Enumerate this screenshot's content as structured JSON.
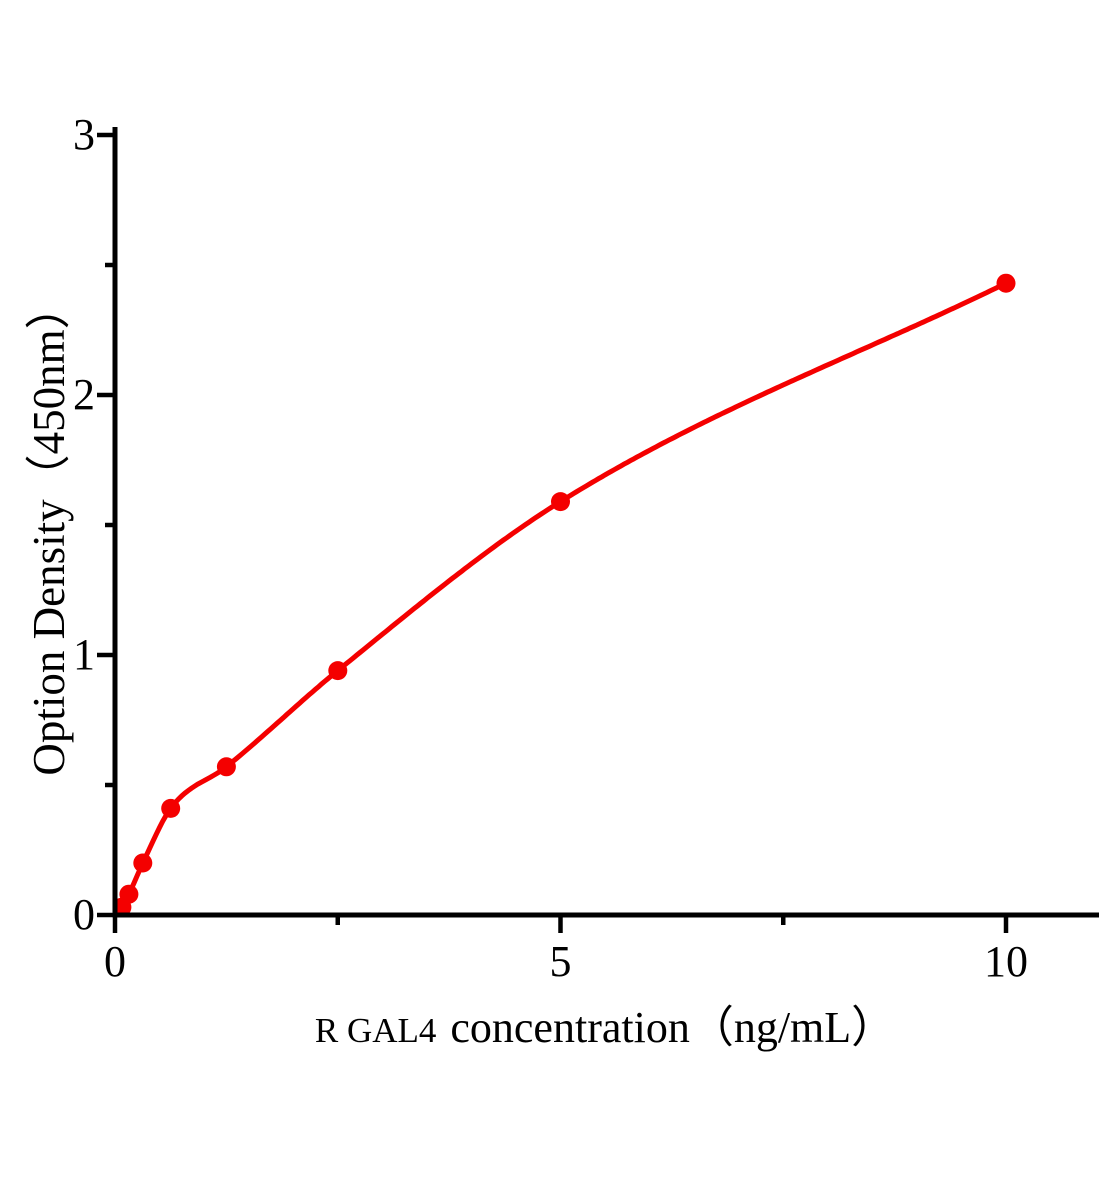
{
  "chart_data": {
    "type": "scatter",
    "title": "",
    "xlabel": "R GAL4 concentration（ng/mL）",
    "xlabel_prefix": "R GAL4",
    "xlabel_rest": "concentration（ng/mL）",
    "ylabel": "Option Density（450nm）",
    "series_name": "standard-curve",
    "x": [
      0.078,
      0.156,
      0.3125,
      0.625,
      1.25,
      2.5,
      5,
      10
    ],
    "y": [
      0.03,
      0.08,
      0.2,
      0.41,
      0.57,
      0.94,
      1.59,
      2.43
    ],
    "curve": {
      "start": [
        0,
        0
      ],
      "fit": "smooth-through-points"
    },
    "xlim": [
      0,
      11
    ],
    "ylim": [
      0,
      3
    ],
    "x_major_ticks": [
      {
        "v": 0,
        "label": "0"
      },
      {
        "v": 5,
        "label": "5"
      },
      {
        "v": 10,
        "label": "10"
      }
    ],
    "x_minor_ticks": [
      2.5,
      7.5
    ],
    "y_major_ticks": [
      {
        "v": 0,
        "label": "0"
      },
      {
        "v": 1,
        "label": "1"
      },
      {
        "v": 2,
        "label": "2"
      },
      {
        "v": 3,
        "label": "3"
      }
    ],
    "y_minor_ticks": [
      0.5,
      1.5,
      2.5
    ],
    "grid": false,
    "legend": null,
    "marker": "filled-circle",
    "colors": {
      "curve": "#f40000",
      "marker": "#f40000",
      "axis": "#000000",
      "text": "#000000",
      "background": "#ffffff"
    }
  }
}
